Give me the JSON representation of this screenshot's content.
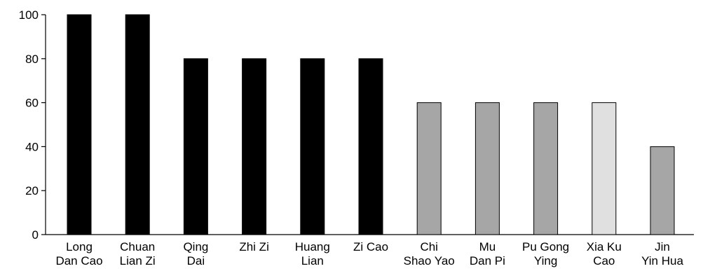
{
  "chart_data": {
    "type": "bar",
    "title": "",
    "xlabel": "",
    "ylabel": "",
    "ylim": [
      0,
      100
    ],
    "yticks": [
      0,
      20,
      40,
      60,
      80,
      100
    ],
    "grid": false,
    "legend": "none",
    "categories": [
      [
        "Long",
        "Dan Cao"
      ],
      [
        "Chuan",
        "Lian Zi"
      ],
      [
        "Qing",
        "Dai"
      ],
      [
        "Zhi Zi"
      ],
      [
        "Huang",
        "Lian"
      ],
      [
        "Zi Cao"
      ],
      [
        "Chi",
        "Shao Yao"
      ],
      [
        "Mu",
        "Dan Pi"
      ],
      [
        "Pu Gong",
        "Ying"
      ],
      [
        "Xia Ku",
        "Cao"
      ],
      [
        "Jin",
        "Yin Hua"
      ]
    ],
    "values": [
      100,
      100,
      80,
      80,
      80,
      80,
      60,
      60,
      60,
      60,
      40
    ],
    "colors": [
      "#000000",
      "#000000",
      "#000000",
      "#000000",
      "#000000",
      "#000000",
      "#a6a6a6",
      "#a6a6a6",
      "#a6a6a6",
      "#e0e0e0",
      "#a6a6a6"
    ]
  }
}
